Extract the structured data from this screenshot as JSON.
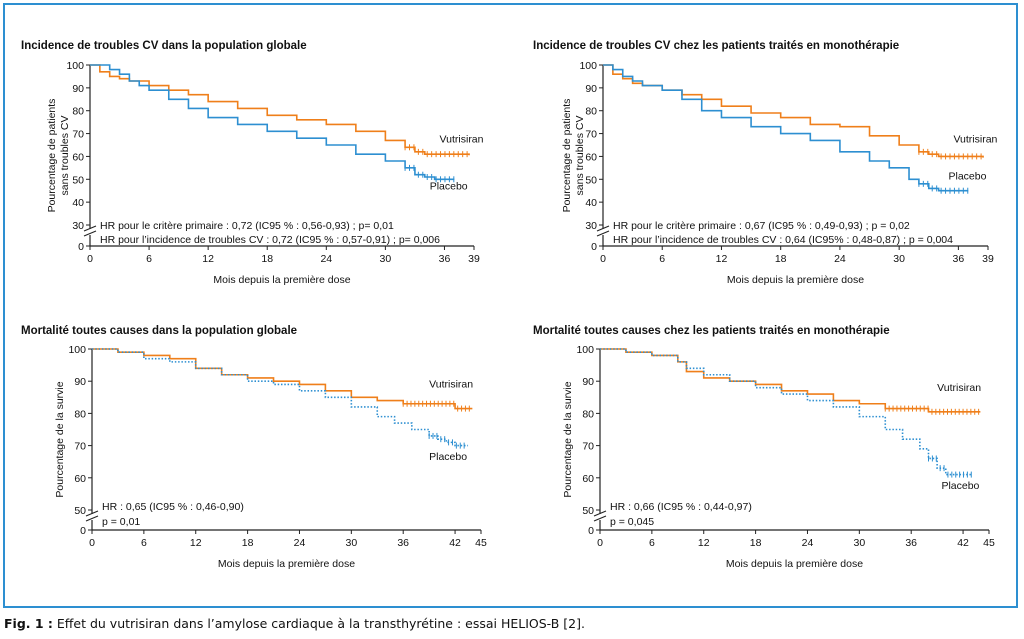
{
  "caption": {
    "label": "Fig. 1 :",
    "text": " Effet du vutrisiran dans l’amylose cardiaque à la transthyrétine : essai HELIOS-B [2]."
  },
  "colors": {
    "vutrisiran": "#ef7f1a",
    "placebo": "#2d8fd1",
    "axis": "#222222",
    "frame": "#2d8fd1"
  },
  "chart_data": [
    {
      "type": "line",
      "title": "Incidence de troubles CV dans la population globale",
      "xlabel": "Mois depuis la première dose",
      "ylabel_lines": [
        "Pourcentage de patients",
        "sans troubles CV"
      ],
      "xticks": [
        0,
        6,
        12,
        18,
        24,
        30,
        36,
        39
      ],
      "yticks": [
        0,
        30,
        40,
        50,
        60,
        70,
        80,
        90,
        100
      ],
      "xlim": [
        0,
        39
      ],
      "ylim": [
        0,
        100
      ],
      "axis_break": true,
      "annotations": [
        "HR pour le critère primaire : 0,72 (IC95 % : 0,56-0,93) ; p= 0,01",
        "HR pour l’incidence de troubles CV : 0,72 (IC95 % : 0,57-0,91) ; p= 0,006"
      ],
      "series": [
        {
          "name": "Vutrisiran",
          "style": "solid",
          "x": [
            0,
            1,
            2,
            3,
            4,
            6,
            8,
            10,
            12,
            15,
            18,
            21,
            24,
            27,
            30,
            32,
            33,
            34,
            36,
            38.5
          ],
          "y": [
            100,
            97,
            95,
            94,
            93,
            91,
            89,
            87,
            84,
            81,
            78,
            76,
            74,
            71,
            67,
            64,
            62,
            61,
            61,
            60.5
          ]
        },
        {
          "name": "Placebo",
          "style": "solid",
          "x": [
            0,
            2,
            3,
            4,
            5,
            6,
            8,
            10,
            12,
            15,
            18,
            21,
            24,
            27,
            30,
            32,
            33,
            34,
            35,
            37
          ],
          "y": [
            100,
            98,
            96,
            93,
            91,
            89,
            85,
            81,
            77,
            74,
            71,
            68,
            65,
            61,
            58,
            55,
            52,
            51,
            50,
            50
          ]
        }
      ],
      "series_labels": [
        {
          "text": "Vutrisiran",
          "x": 35.5,
          "y": 66
        },
        {
          "text": "Placebo",
          "x": 34.5,
          "y": 45.5
        }
      ]
    },
    {
      "type": "line",
      "title": "Incidence de troubles CV chez les patients traités en monothérapie",
      "xlabel": "Mois depuis la première dose",
      "ylabel_lines": [
        "Pourcentage de patients",
        "sans troubles CV"
      ],
      "xticks": [
        0,
        6,
        12,
        18,
        24,
        30,
        36,
        39
      ],
      "yticks": [
        0,
        30,
        40,
        50,
        60,
        70,
        80,
        90,
        100
      ],
      "xlim": [
        0,
        39
      ],
      "ylim": [
        0,
        100
      ],
      "axis_break": true,
      "annotations": [
        "HR pour le critère primaire : 0,67 (IC95 % : 0,49-0,93) ; p = 0,02",
        "HR pour l’incidence de troubles CV : 0,64 (IC95% : 0,48-0,87) ; p = 0,004"
      ],
      "series": [
        {
          "name": "Vutrisiran",
          "style": "solid",
          "x": [
            0,
            1,
            2,
            3,
            4,
            6,
            8,
            10,
            12,
            15,
            18,
            21,
            24,
            27,
            30,
            32,
            33,
            34,
            36,
            38.5
          ],
          "y": [
            100,
            96,
            94,
            92,
            91,
            89,
            87,
            85,
            82,
            79,
            77,
            74,
            73,
            69,
            65,
            62,
            61,
            60,
            60,
            59.5
          ]
        },
        {
          "name": "Placebo",
          "style": "solid",
          "x": [
            0,
            1,
            2,
            3,
            4,
            6,
            8,
            10,
            12,
            15,
            18,
            21,
            24,
            27,
            29,
            31,
            32,
            33,
            34,
            35,
            37
          ],
          "y": [
            100,
            98,
            95,
            93,
            91,
            89,
            85,
            80,
            77,
            73,
            70,
            67,
            62,
            58,
            55,
            50,
            48,
            46,
            45,
            45,
            45
          ]
        }
      ],
      "series_labels": [
        {
          "text": "Vutrisiran",
          "x": 35.5,
          "y": 66
        },
        {
          "text": "Placebo",
          "x": 35,
          "y": 50
        }
      ]
    },
    {
      "type": "line",
      "title": "Mortalité toutes causes dans la population globale",
      "xlabel": "Mois depuis la première dose",
      "ylabel_lines": [
        "Pourcentage de la survie"
      ],
      "xticks": [
        0,
        6,
        12,
        18,
        24,
        30,
        36,
        42,
        45
      ],
      "yticks": [
        0,
        50,
        60,
        70,
        80,
        90,
        100
      ],
      "xlim": [
        0,
        45
      ],
      "ylim": [
        0,
        100
      ],
      "axis_break": true,
      "annotations": [
        "HR : 0,65 (IC95 % : 0,46-0,90)",
        "p = 0,01"
      ],
      "series": [
        {
          "name": "Vutrisiran",
          "style": "solid",
          "x": [
            0,
            3,
            6,
            9,
            12,
            15,
            18,
            21,
            24,
            27,
            30,
            33,
            36,
            39,
            41,
            42,
            44
          ],
          "y": [
            100,
            99,
            98,
            97,
            94,
            92,
            91,
            90,
            89,
            87,
            85,
            84,
            83,
            83,
            83,
            81.5,
            81.5
          ]
        },
        {
          "name": "Placebo",
          "style": "dotted",
          "x": [
            0,
            3,
            6,
            9,
            12,
            15,
            18,
            21,
            24,
            27,
            30,
            33,
            35,
            37,
            39,
            40,
            41,
            42,
            43.5
          ],
          "y": [
            100,
            99,
            97,
            96,
            94,
            92,
            90,
            89,
            87,
            85,
            82,
            79,
            77,
            75,
            73,
            72,
            71,
            70,
            70
          ]
        }
      ],
      "series_labels": [
        {
          "text": "Vutrisiran",
          "x": 39,
          "y": 88
        },
        {
          "text": "Placebo",
          "x": 39,
          "y": 65.5
        }
      ]
    },
    {
      "type": "line",
      "title": "Mortalité toutes causes chez les patients traités en monothérapie",
      "xlabel": "Mois depuis la première dose",
      "ylabel_lines": [
        "Pourcentage de la survie"
      ],
      "xticks": [
        0,
        6,
        12,
        18,
        24,
        30,
        36,
        42,
        45
      ],
      "yticks": [
        0,
        50,
        60,
        70,
        80,
        90,
        100
      ],
      "xlim": [
        0,
        45
      ],
      "ylim": [
        0,
        100
      ],
      "axis_break": true,
      "annotations": [
        "HR : 0,66 (IC95 % : 0,44-0,97)",
        "p = 0,045"
      ],
      "series": [
        {
          "name": "Vutrisiran",
          "style": "solid",
          "x": [
            0,
            3,
            6,
            9,
            10,
            12,
            15,
            18,
            21,
            24,
            27,
            30,
            33,
            36,
            38,
            40,
            44
          ],
          "y": [
            100,
            99,
            98,
            96,
            93,
            91,
            90,
            89,
            87,
            86,
            84,
            83,
            81.5,
            81.5,
            80.5,
            80.5,
            80.5
          ]
        },
        {
          "name": "Placebo",
          "style": "dotted",
          "x": [
            0,
            3,
            6,
            9,
            10,
            12,
            15,
            18,
            21,
            24,
            27,
            30,
            33,
            35,
            37,
            38,
            39,
            40,
            41,
            43
          ],
          "y": [
            100,
            99,
            98,
            96,
            94,
            92,
            90,
            88,
            86,
            84,
            82,
            79,
            75,
            72,
            69,
            66,
            63,
            61,
            61,
            61
          ]
        }
      ],
      "series_labels": [
        {
          "text": "Vutrisiran",
          "x": 39,
          "y": 87
        },
        {
          "text": "Placebo",
          "x": 39.5,
          "y": 56.5
        }
      ]
    }
  ]
}
